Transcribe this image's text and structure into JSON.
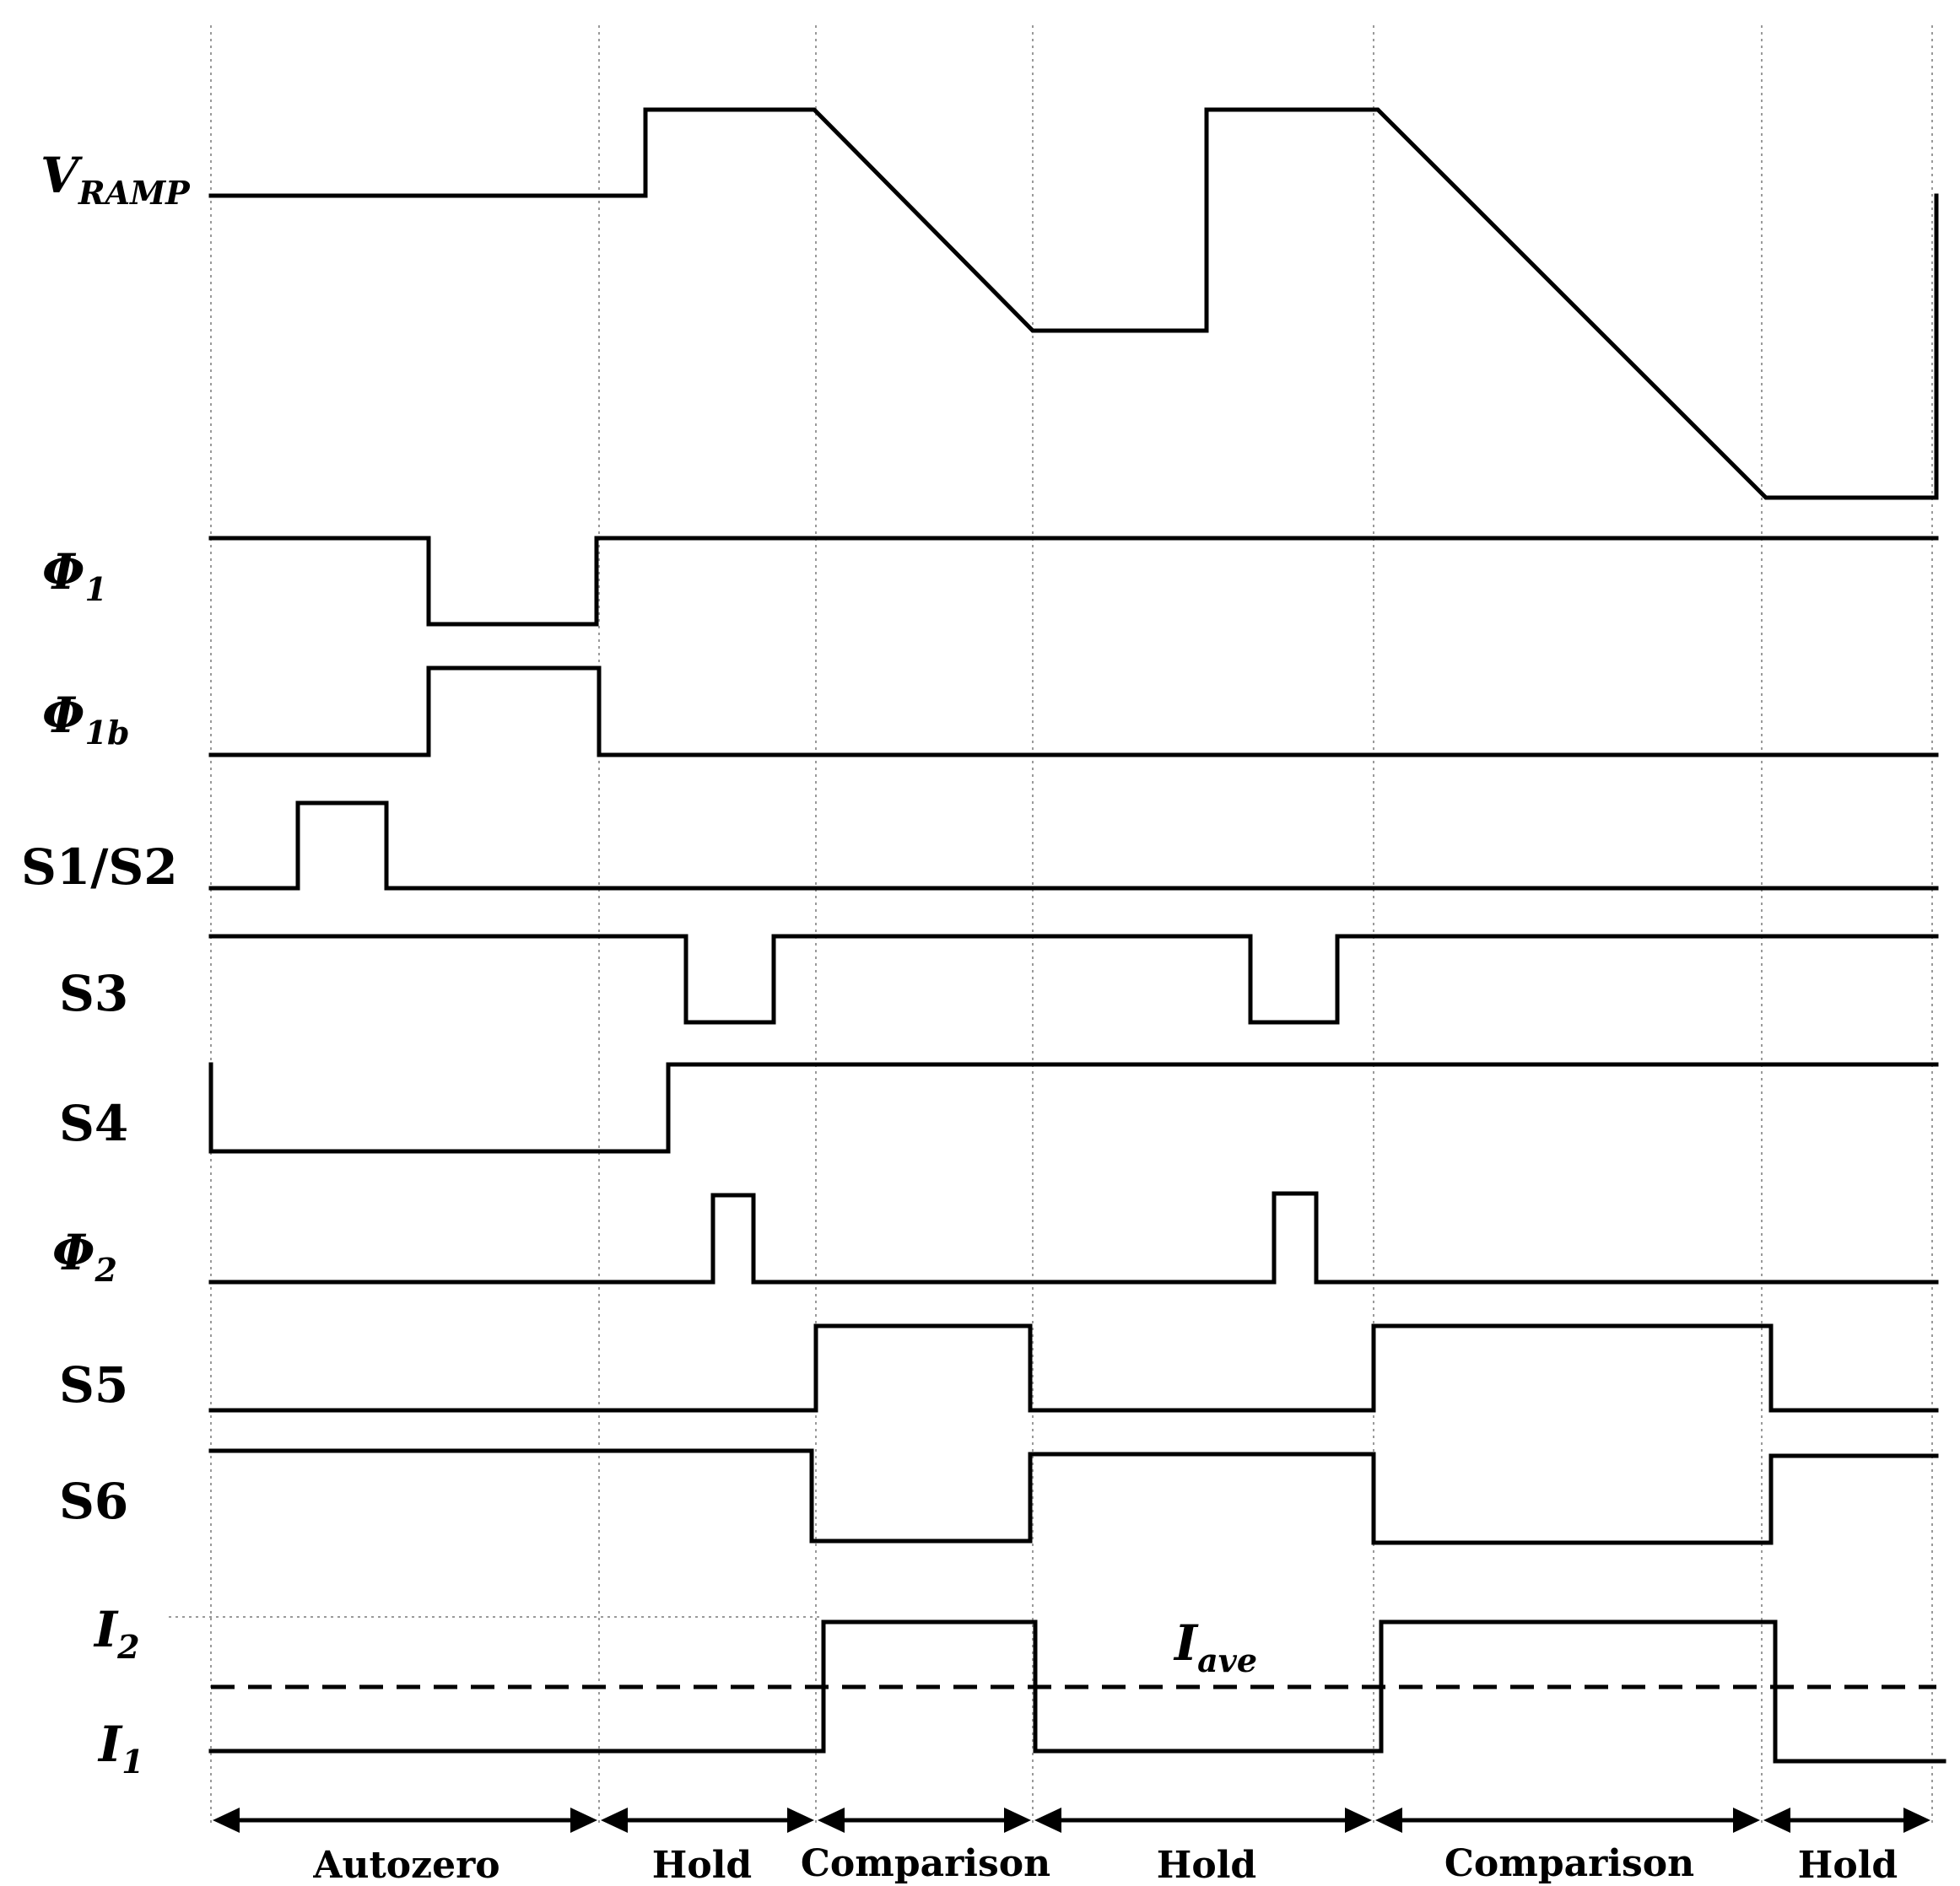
{
  "signals": [
    {
      "id": "vramp",
      "main": "V",
      "sub": "RAMP",
      "italic": true
    },
    {
      "id": "phi1",
      "main": "Φ",
      "sub": "1",
      "italic": true
    },
    {
      "id": "phi1b",
      "main": "Φ",
      "sub": "1b",
      "italic": true
    },
    {
      "id": "s1s2",
      "main": "S1/S2",
      "sub": "",
      "italic": false
    },
    {
      "id": "s3",
      "main": "S3",
      "sub": "",
      "italic": false
    },
    {
      "id": "s4",
      "main": "S4",
      "sub": "",
      "italic": false
    },
    {
      "id": "phi2",
      "main": "Φ",
      "sub": "2",
      "italic": true
    },
    {
      "id": "s5",
      "main": "S5",
      "sub": "",
      "italic": false
    },
    {
      "id": "s6",
      "main": "S6",
      "sub": "",
      "italic": false
    }
  ],
  "current_labels": {
    "i2": {
      "main": "I",
      "sub": "2"
    },
    "i1": {
      "main": "I",
      "sub": "1"
    },
    "iave": {
      "main": "I",
      "sub": "ave"
    }
  },
  "phases": [
    "Autozero",
    "Hold",
    "Comparison",
    "Hold",
    "Comparison",
    "Hold"
  ]
}
